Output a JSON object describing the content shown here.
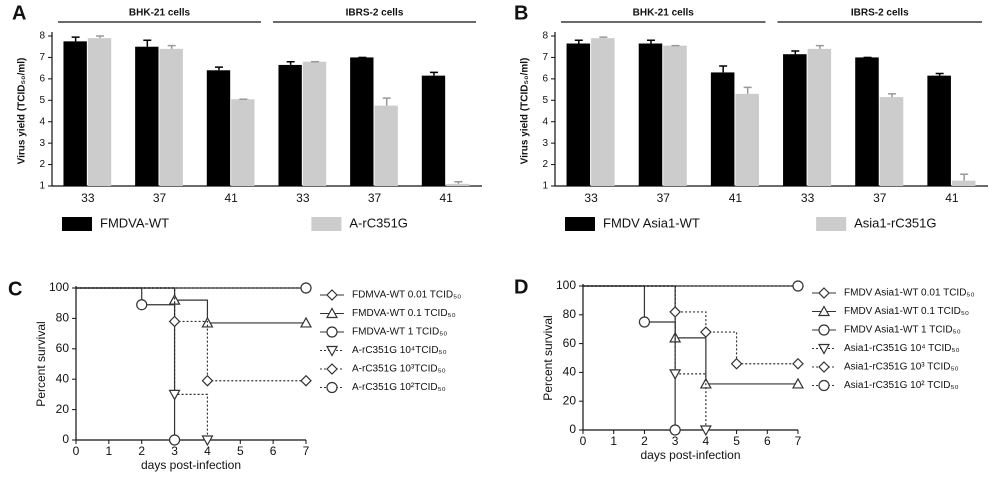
{
  "chart_data": [
    {
      "type": "bar",
      "panel_label": "A",
      "groups": [
        "BHK-21 cells",
        "IBRS-2 cells"
      ],
      "ylabel": "Virus yield (TCID₅₀/ml)",
      "categories": [
        "33",
        "37",
        "41",
        "33",
        "37",
        "41"
      ],
      "ylim": [
        1,
        8
      ],
      "yticks": [
        1,
        2,
        3,
        4,
        5,
        6,
        7,
        8
      ],
      "series": [
        {
          "name": "FMDVA-WT",
          "color": "#000000",
          "values": [
            7.75,
            7.5,
            6.4,
            6.65,
            7.0,
            6.15
          ],
          "errors": [
            0.2,
            0.3,
            0.15,
            0.15,
            0,
            0.15
          ]
        },
        {
          "name": "A-rC351G",
          "color": "#cccccc",
          "values": [
            7.9,
            7.4,
            5.05,
            6.8,
            4.75,
            1.1
          ],
          "errors": [
            0.1,
            0.15,
            0,
            0,
            0.35,
            0.1
          ]
        }
      ]
    },
    {
      "type": "bar",
      "panel_label": "B",
      "groups": [
        "BHK-21 cells",
        "IBRS-2 cells"
      ],
      "ylabel": "Virus yield (TCID₅₀/ml)",
      "categories": [
        "33",
        "37",
        "41",
        "33",
        "37",
        "41"
      ],
      "ylim": [
        1,
        8
      ],
      "yticks": [
        1,
        2,
        3,
        4,
        5,
        6,
        7,
        8
      ],
      "series": [
        {
          "name": "FMDV Asia1-WT",
          "color": "#000000",
          "values": [
            7.65,
            7.65,
            6.3,
            7.15,
            7.0,
            6.15
          ],
          "errors": [
            0.15,
            0.15,
            0.3,
            0.15,
            0,
            0.1
          ]
        },
        {
          "name": "Asia1-rC351G",
          "color": "#cccccc",
          "values": [
            7.9,
            7.55,
            5.3,
            7.4,
            5.15,
            1.25
          ],
          "errors": [
            0.05,
            0,
            0.3,
            0.15,
            0.15,
            0.3
          ]
        }
      ]
    },
    {
      "type": "line",
      "panel_label": "C",
      "ylabel": "Percent survival",
      "xlabel": "days post-infection",
      "xlim": [
        0,
        7
      ],
      "xticks": [
        0,
        1,
        2,
        3,
        4,
        5,
        6,
        7
      ],
      "ylim": [
        0,
        100
      ],
      "yticks": [
        0,
        20,
        40,
        60,
        80,
        100
      ],
      "series": [
        {
          "name": "FDMVA-WT 0.01 TCID₅₀",
          "marker": "diamond",
          "dash": "solid",
          "x": [
            0,
            7
          ],
          "values": [
            100,
            100
          ]
        },
        {
          "name": "FMDVA-WT 0.1 TCID₅₀",
          "marker": "triangle",
          "dash": "solid",
          "x": [
            0,
            3,
            4,
            7
          ],
          "values": [
            100,
            92,
            77,
            77
          ]
        },
        {
          "name": "FMDVA-WT 1 TCID₅₀",
          "marker": "circle",
          "dash": "solid",
          "x": [
            0,
            2,
            3
          ],
          "values": [
            100,
            89,
            0
          ]
        },
        {
          "name": "A-rC351G 10⁴TCID₅₀",
          "marker": "triangle-down",
          "dash": "dotted",
          "x": [
            0,
            3,
            4
          ],
          "values": [
            100,
            30,
            0
          ]
        },
        {
          "name": "A-rC351G 10³TCID₅₀",
          "marker": "diamond",
          "dash": "dotted",
          "x": [
            0,
            3,
            4,
            7
          ],
          "values": [
            100,
            78,
            39,
            39
          ]
        },
        {
          "name": "A-rC351G 10²TCID₅₀",
          "marker": "circle",
          "dash": "dotted",
          "x": [
            0,
            7
          ],
          "values": [
            100,
            100
          ]
        }
      ]
    },
    {
      "type": "line",
      "panel_label": "D",
      "ylabel": "Percent survival",
      "xlabel": "days post-infection",
      "xlim": [
        0,
        7
      ],
      "xticks": [
        0,
        1,
        2,
        3,
        4,
        5,
        6,
        7
      ],
      "ylim": [
        0,
        100
      ],
      "yticks": [
        0,
        20,
        40,
        60,
        80,
        100
      ],
      "series": [
        {
          "name": "FMDV Asia1-WT 0.01 TCID₅₀",
          "marker": "diamond",
          "dash": "solid",
          "x": [
            0,
            7
          ],
          "values": [
            100,
            100
          ]
        },
        {
          "name": "FMDV Asia1-WT 0.1 TCID₅₀",
          "marker": "triangle",
          "dash": "solid",
          "x": [
            0,
            3,
            4,
            7
          ],
          "values": [
            100,
            64,
            32,
            32
          ]
        },
        {
          "name": "FMDV Asia1-WT 1 TCID₅₀",
          "marker": "circle",
          "dash": "solid",
          "x": [
            0,
            2,
            3
          ],
          "values": [
            100,
            75,
            0
          ]
        },
        {
          "name": "Asia1-rC351G 10⁴ TCID₅₀",
          "marker": "triangle-down",
          "dash": "dotted",
          "x": [
            0,
            3,
            4
          ],
          "values": [
            100,
            39,
            0
          ]
        },
        {
          "name": "Asia1-rC351G 10³ TCID₅₀",
          "marker": "diamond",
          "dash": "dotted",
          "x": [
            0,
            3,
            4,
            5,
            7
          ],
          "values": [
            100,
            82,
            68,
            46,
            46
          ]
        },
        {
          "name": "Asia1-rC351G 10² TCID₅₀",
          "marker": "circle",
          "dash": "dotted",
          "x": [
            0,
            7
          ],
          "values": [
            100,
            100
          ]
        }
      ]
    }
  ]
}
